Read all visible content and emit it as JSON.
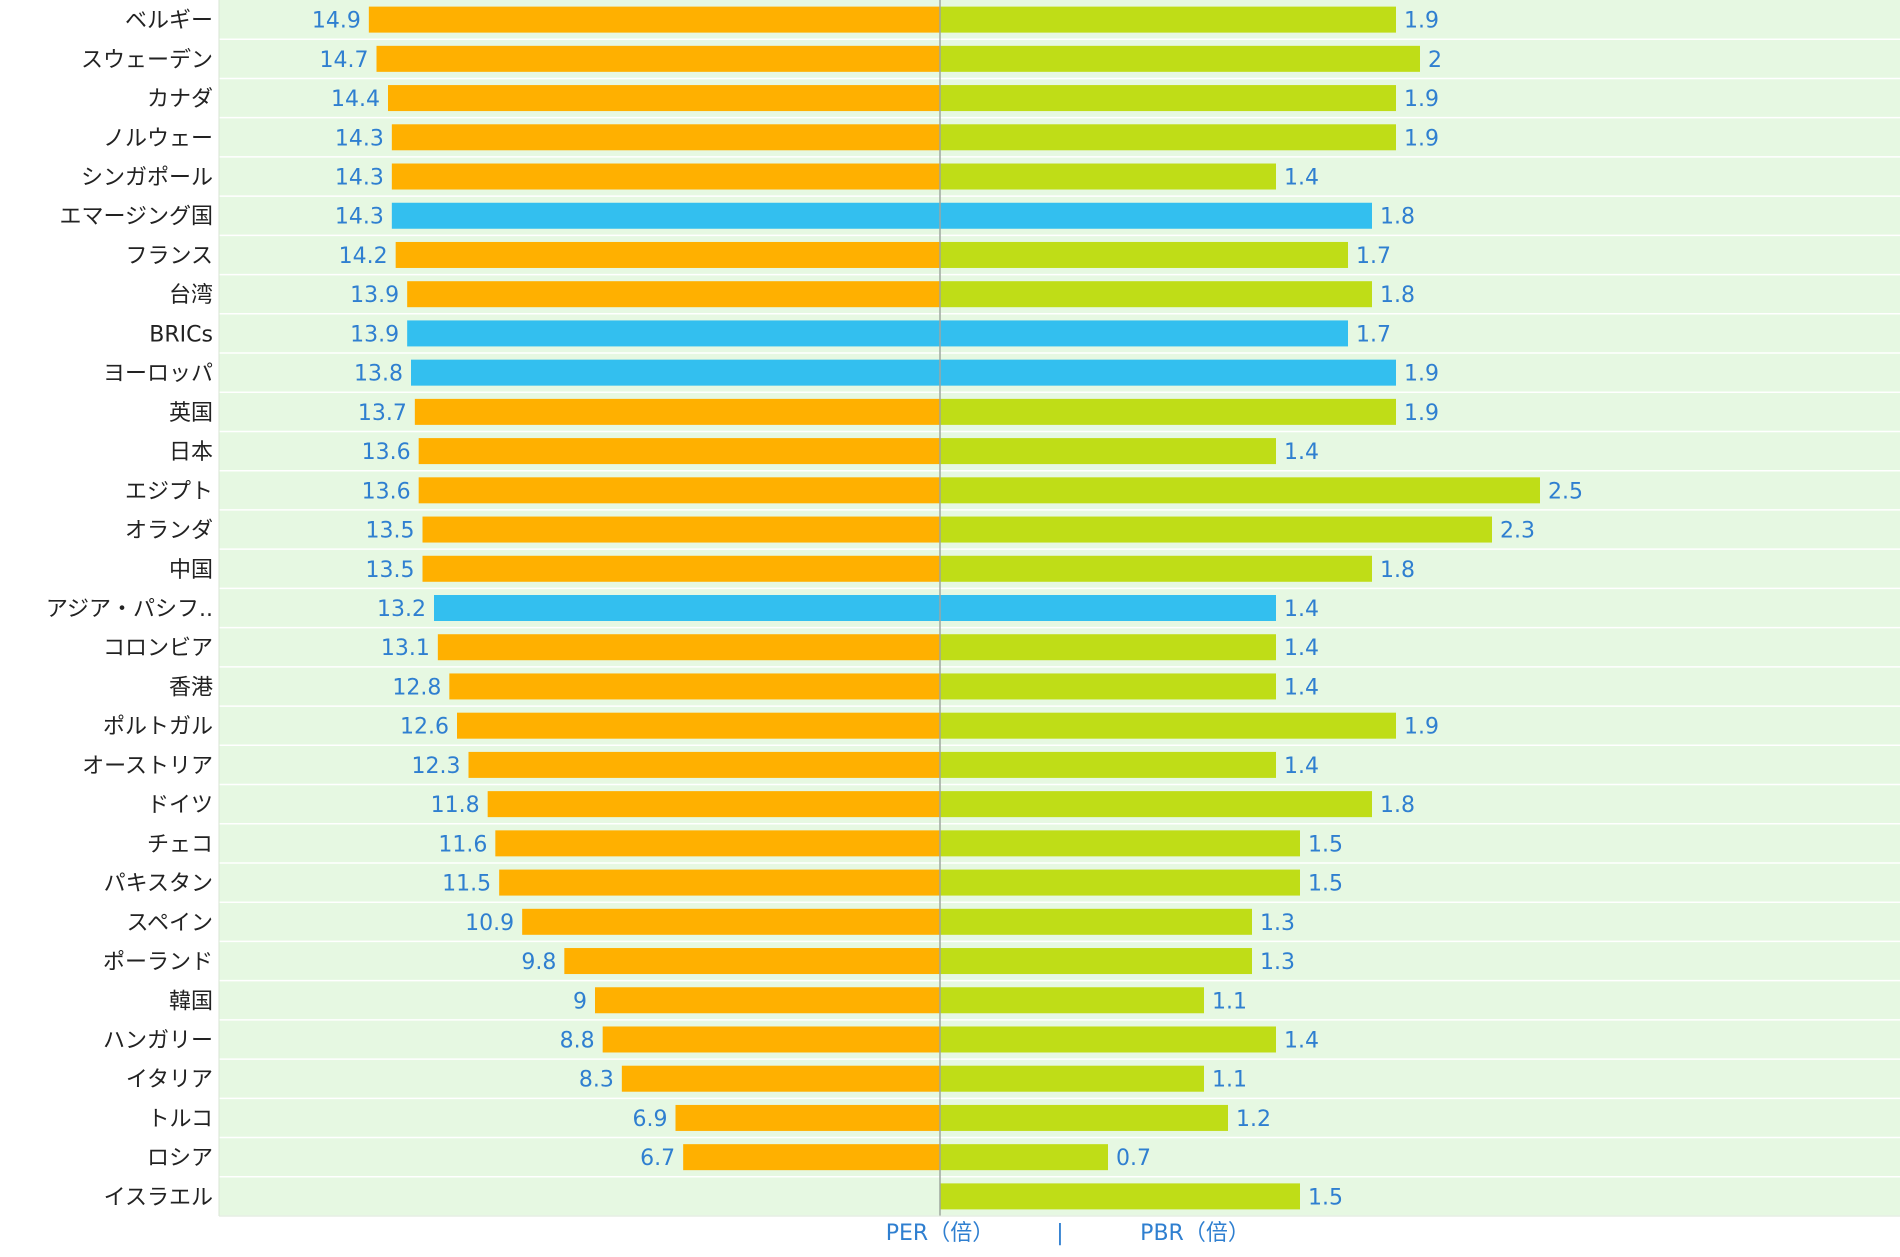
{
  "chart_data": {
    "type": "bar",
    "orientation": "horizontal",
    "layout": "diverging",
    "categories": [
      "ベルギー",
      "スウェーデン",
      "カナダ",
      "ノルウェー",
      "シンガポール",
      "エマージング国",
      "フランス",
      "台湾",
      "BRICs",
      "ヨーロッパ",
      "英国",
      "日本",
      "エジプト",
      "オランダ",
      "中国",
      "アジア・パシフ..",
      "コロンビア",
      "香港",
      "ポルトガル",
      "オーストリア",
      "ドイツ",
      "チェコ",
      "パキスタン",
      "スペイン",
      "ポーランド",
      "韓国",
      "ハンガリー",
      "イタリア",
      "トルコ",
      "ロシア",
      "イスラエル"
    ],
    "series": [
      {
        "name": "PER（倍）",
        "direction": "left",
        "values": [
          14.9,
          14.7,
          14.4,
          14.3,
          14.3,
          14.3,
          14.2,
          13.9,
          13.9,
          13.8,
          13.7,
          13.6,
          13.6,
          13.5,
          13.5,
          13.2,
          13.1,
          12.8,
          12.6,
          12.3,
          11.8,
          11.6,
          11.5,
          10.9,
          9.8,
          9,
          8.8,
          8.3,
          6.9,
          6.7,
          null
        ],
        "labels": [
          "14.9",
          "14.7",
          "14.4",
          "14.3",
          "14.3",
          "14.3",
          "14.2",
          "13.9",
          "13.9",
          "13.8",
          "13.7",
          "13.6",
          "13.6",
          "13.5",
          "13.5",
          "13.2",
          "13.1",
          "12.8",
          "12.6",
          "12.3",
          "11.8",
          "11.6",
          "11.5",
          "10.9",
          "9.8",
          "9",
          "8.8",
          "8.3",
          "6.9",
          "6.7",
          ""
        ]
      },
      {
        "name": "PBR（倍）",
        "direction": "right",
        "values": [
          1.9,
          2,
          1.9,
          1.9,
          1.4,
          1.8,
          1.7,
          1.8,
          1.7,
          1.9,
          1.9,
          1.4,
          2.5,
          2.3,
          1.8,
          1.4,
          1.4,
          1.4,
          1.9,
          1.4,
          1.8,
          1.5,
          1.5,
          1.3,
          1.3,
          1.1,
          1.4,
          1.1,
          1.2,
          0.7,
          1.5
        ],
        "labels": [
          "1.9",
          "2",
          "1.9",
          "1.9",
          "1.4",
          "1.8",
          "1.7",
          "1.8",
          "1.7",
          "1.9",
          "1.9",
          "1.4",
          "2.5",
          "2.3",
          "1.8",
          "1.4",
          "1.4",
          "1.4",
          "1.9",
          "1.4",
          "1.8",
          "1.5",
          "1.5",
          "1.3",
          "1.3",
          "1.1",
          "1.4",
          "1.1",
          "1.2",
          "0.7",
          "1.5"
        ]
      }
    ],
    "highlighted_categories": [
      "エマージング国",
      "BRICs",
      "ヨーロッパ",
      "アジア・パシフ.."
    ],
    "colors": {
      "per_bar": "#FFB000",
      "pbr_bar": "#BFDD17",
      "highlight_bar": "#33BFEF",
      "plot_background": "#E6F8E2",
      "row_separator": "#FFFFFF",
      "value_label": "#2F7FD0",
      "category_label": "#222222",
      "center_line": "#9EA7A0",
      "footer_text": "#2F7FD0"
    },
    "per_range": [
      0,
      15
    ],
    "pbr_range": [
      0,
      2.5
    ],
    "legend": {
      "left_label": "PER（倍）",
      "separator": "|",
      "right_label": "PBR（倍）"
    }
  }
}
